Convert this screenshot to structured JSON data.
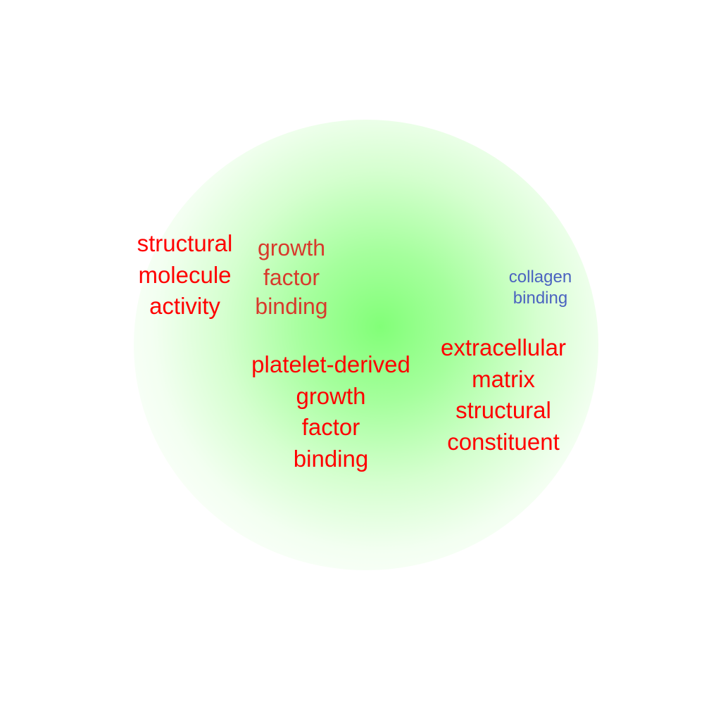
{
  "terms": [
    {
      "id": "structural",
      "lines": [
        "structural",
        "molecule",
        "activity"
      ],
      "color": "#ff0000"
    },
    {
      "id": "growth",
      "lines": [
        "growth",
        "factor",
        "binding"
      ],
      "color": "#d83a2c"
    },
    {
      "id": "collagen",
      "lines": [
        "collagen",
        "binding"
      ],
      "color": "#4a62c0"
    },
    {
      "id": "pdgf",
      "lines": [
        "platelet-derived",
        "growth",
        "factor",
        "binding"
      ],
      "color": "#ff0000"
    },
    {
      "id": "ecm",
      "lines": [
        "extracellular",
        "matrix",
        "structural",
        "constituent"
      ],
      "color": "#ff0000"
    }
  ],
  "colors": {
    "background": "#ffffff",
    "cluster_glow": "#82ff78"
  }
}
